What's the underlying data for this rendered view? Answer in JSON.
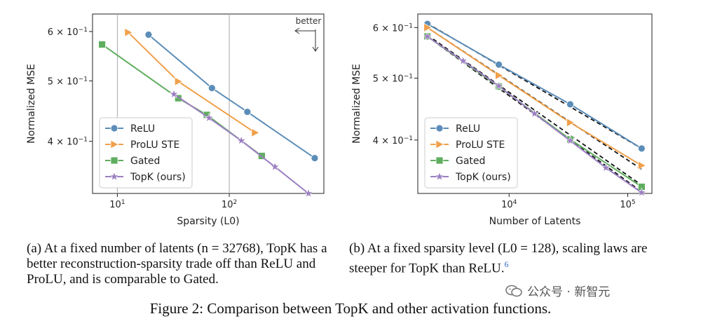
{
  "chart_data": [
    {
      "type": "line",
      "xscale": "log",
      "yscale": "log",
      "xlim": [
        6,
        700
      ],
      "ylim": [
        0.33,
        0.64
      ],
      "xlabel": "Sparsity (L0)",
      "ylabel": "Normalized MSE",
      "xticks": [
        {
          "v": 10,
          "base": "10",
          "exp": "1"
        },
        {
          "v": 100,
          "base": "10",
          "exp": "2"
        }
      ],
      "yticks": [
        {
          "v": 0.6,
          "m": "6",
          "e": "−1"
        },
        {
          "v": 0.5,
          "m": "5",
          "e": "−1"
        },
        {
          "v": 0.4,
          "m": "4",
          "e": "−1"
        }
      ],
      "vlines": [
        10,
        100
      ],
      "annotation": "better",
      "legend": "lower-left",
      "series": [
        {
          "name": "ReLU",
          "color": "#5b8db8",
          "marker": "circle",
          "x": [
            19,
            70,
            145,
            580
          ],
          "y": [
            0.593,
            0.487,
            0.446,
            0.376
          ]
        },
        {
          "name": "ProLU STE",
          "color": "#f0a04b",
          "marker": "triangle",
          "x": [
            12.5,
            35,
            170
          ],
          "y": [
            0.598,
            0.499,
            0.413
          ]
        },
        {
          "name": "Gated",
          "color": "#5fae5f",
          "marker": "square",
          "x": [
            7.3,
            35,
            63,
            195
          ],
          "y": [
            0.572,
            0.469,
            0.441,
            0.379
          ]
        },
        {
          "name": "TopK (ours)",
          "color": "#9b7fc0",
          "marker": "star",
          "x": [
            32,
            66,
            128,
            256,
            510
          ],
          "y": [
            0.476,
            0.436,
            0.401,
            0.364,
            0.33
          ]
        }
      ]
    },
    {
      "type": "line",
      "xscale": "log",
      "yscale": "log",
      "xlim": [
        1700,
        160000
      ],
      "ylim": [
        0.33,
        0.63
      ],
      "xlabel": "Number of Latents",
      "ylabel": "Normalized MSE",
      "xticks": [
        {
          "v": 10000,
          "base": "10",
          "exp": "4"
        },
        {
          "v": 100000,
          "base": "10",
          "exp": "5"
        }
      ],
      "yticks": [
        {
          "v": 0.6,
          "m": "6",
          "e": "−1"
        },
        {
          "v": 0.5,
          "m": "5",
          "e": "−1"
        },
        {
          "v": 0.4,
          "m": "4",
          "e": "−1"
        }
      ],
      "legend": "lower-left",
      "fit_lines": "dashed black",
      "series": [
        {
          "name": "ReLU",
          "color": "#5b8db8",
          "marker": "circle",
          "x": [
            2048,
            8192,
            32768,
            131072
          ],
          "y": [
            0.608,
            0.525,
            0.455,
            0.388
          ],
          "fit": [
            0.609,
            0.388
          ]
        },
        {
          "name": "ProLU STE",
          "color": "#f0a04b",
          "marker": "triangle",
          "x": [
            2048,
            8192,
            32768,
            131072
          ],
          "y": [
            0.6,
            0.505,
            0.426,
            0.365
          ],
          "fit": [
            0.6,
            0.36
          ]
        },
        {
          "name": "Gated",
          "color": "#5fae5f",
          "marker": "square",
          "x": [
            2048,
            8192,
            32768,
            131072
          ],
          "y": [
            0.581,
            0.485,
            0.401,
            0.338
          ],
          "fit": [
            0.584,
            0.34
          ]
        },
        {
          "name": "TopK (ours)",
          "color": "#9b7fc0",
          "marker": "star",
          "x": [
            2048,
            4096,
            8192,
            16384,
            32768,
            65536,
            131072
          ],
          "y": [
            0.581,
            0.532,
            0.486,
            0.44,
            0.399,
            0.362,
            0.331
          ],
          "fit": [
            0.581,
            0.332
          ]
        }
      ]
    }
  ],
  "captions": {
    "a": "(a) At a fixed number of latents (n = 32768), TopK has a better reconstruction-sparsity trade off than ReLU and ProLU, and is comparable to Gated.",
    "b": "(b) At a fixed sparsity level (L0 = 128), scaling laws are steeper for TopK than ReLU.",
    "b_footnote": "6",
    "figure": "Figure 2: Comparison between TopK and other activation functions."
  },
  "watermark": "公众号 · 新智元"
}
